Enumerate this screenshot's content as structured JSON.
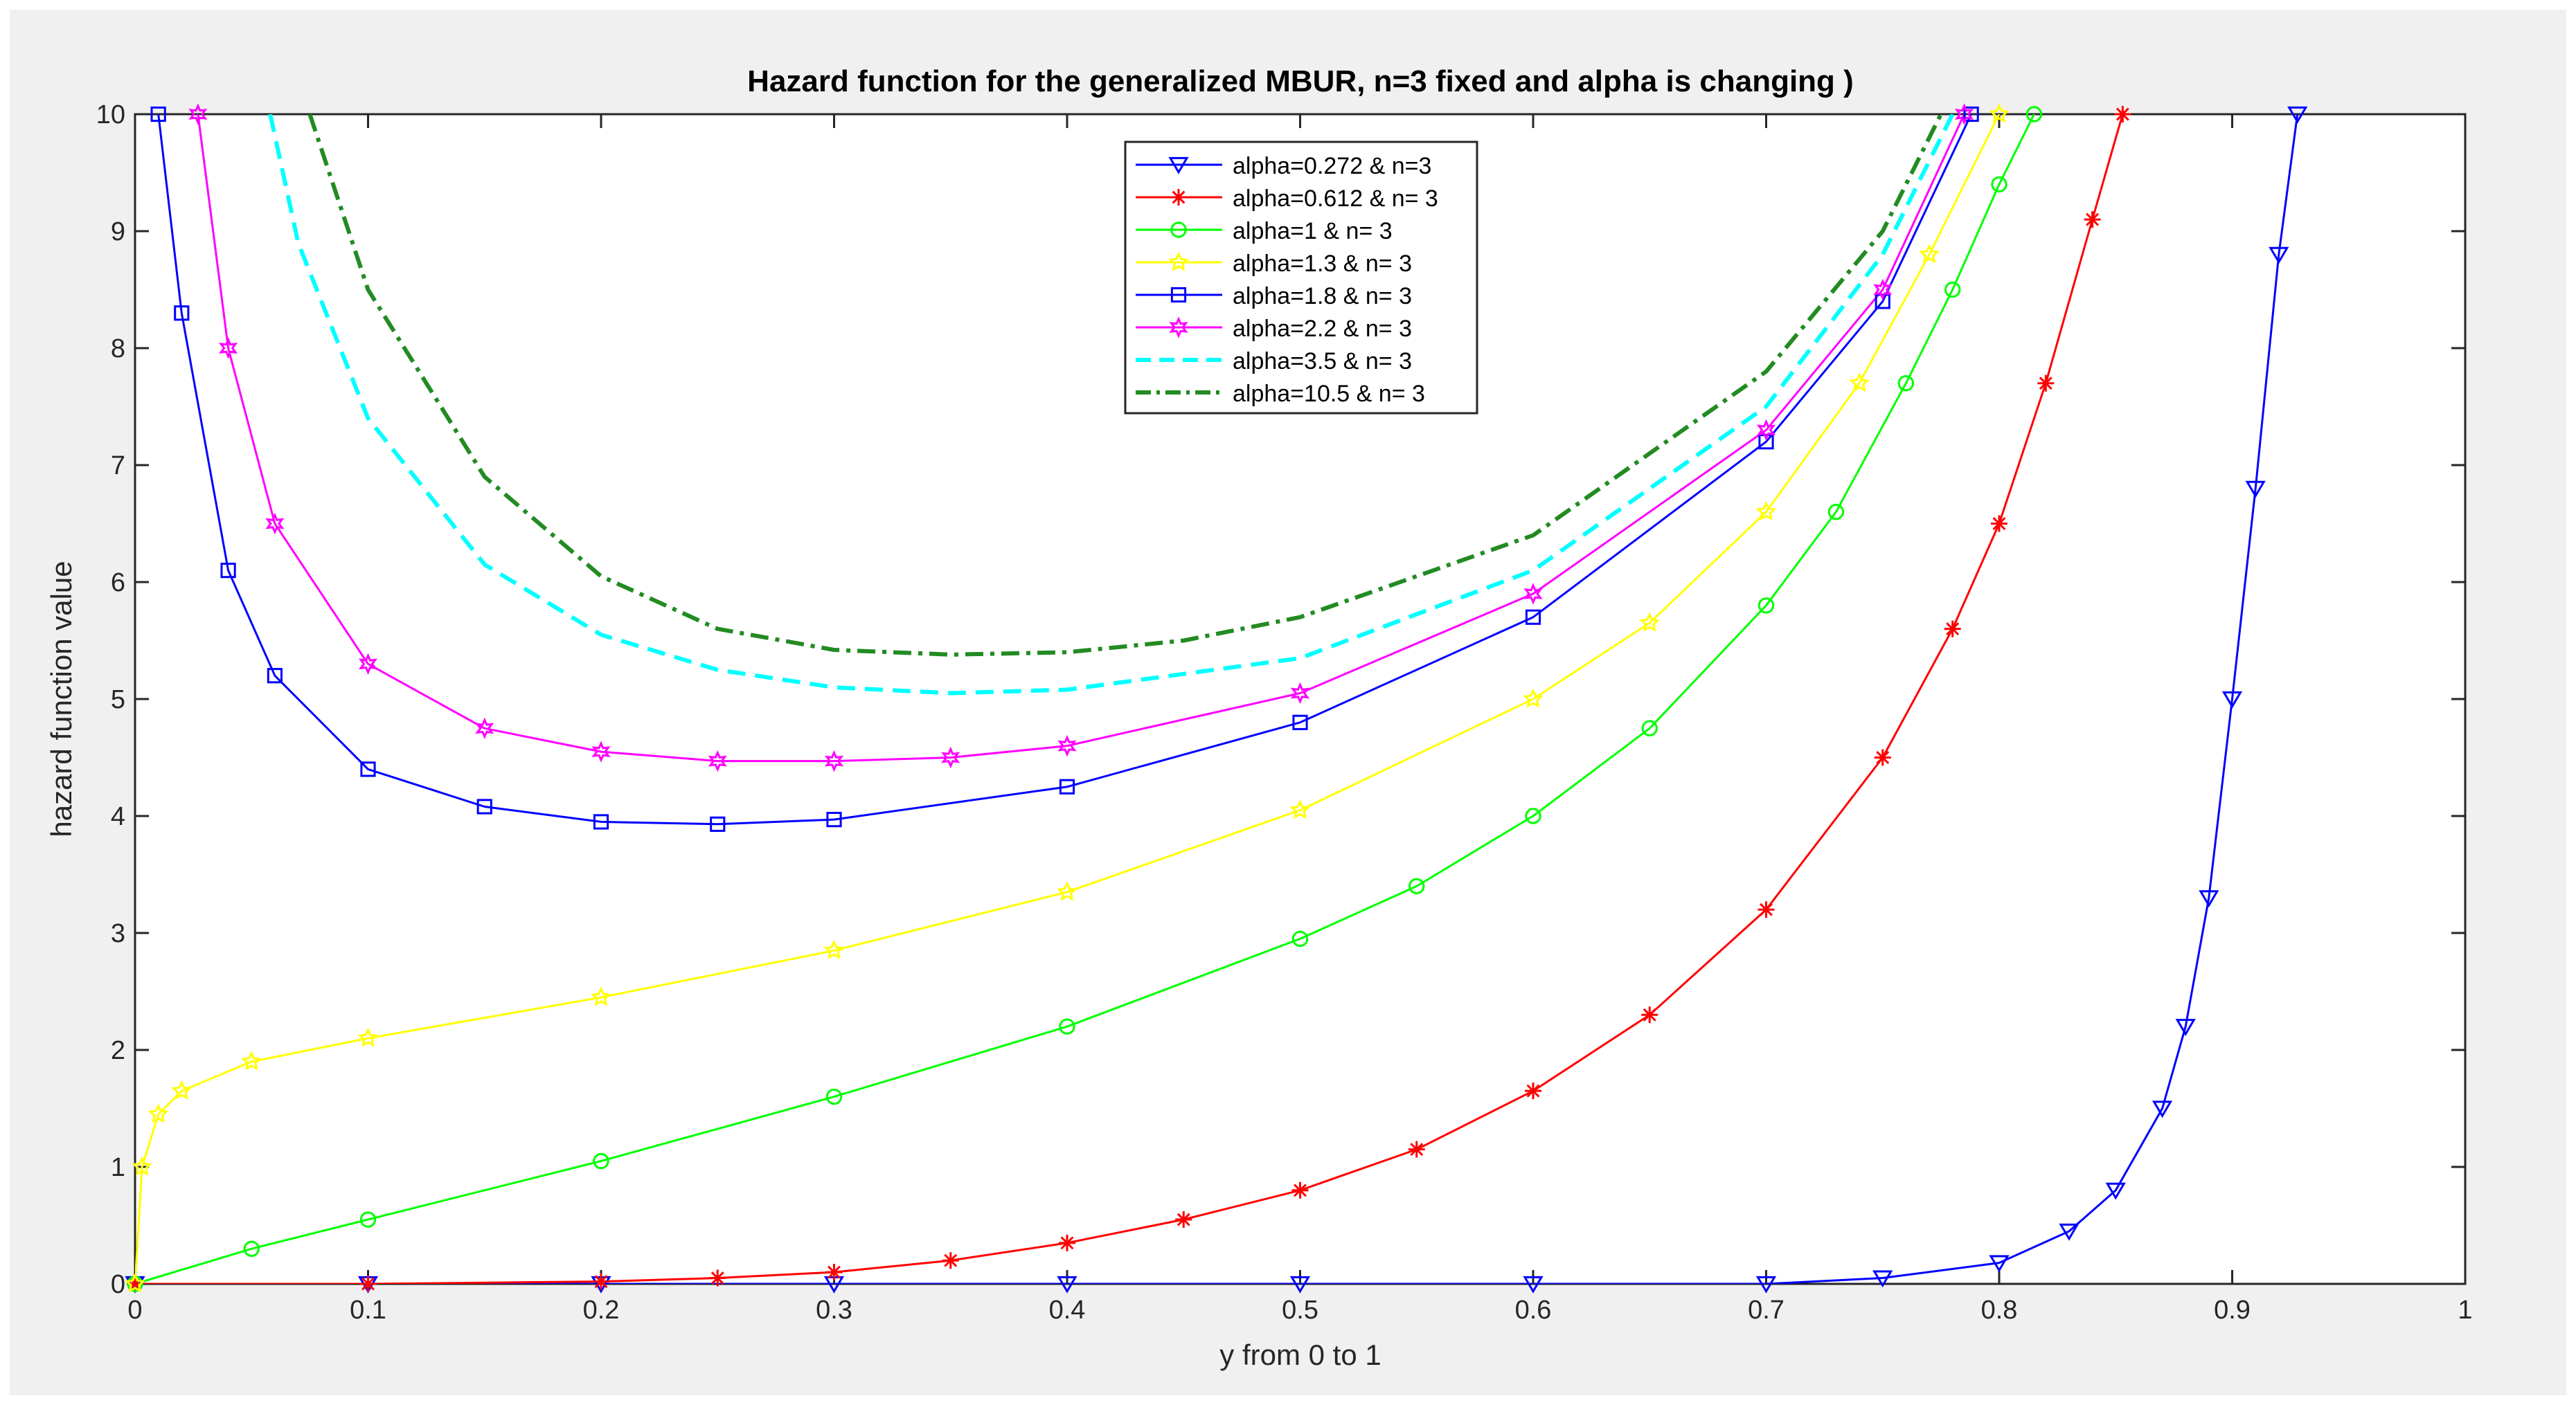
{
  "chart_data": {
    "type": "line",
    "title": "Hazard function for the generalized  MBUR, n=3 fixed and alpha is changing )",
    "xlabel": "y from 0 to 1",
    "ylabel": "hazard function value",
    "xlim": [
      0,
      1
    ],
    "ylim": [
      0,
      10
    ],
    "xticks": [
      0,
      0.1,
      0.2,
      0.3,
      0.4,
      0.5,
      0.6,
      0.7,
      0.8,
      0.9,
      1
    ],
    "yticks": [
      0,
      1,
      2,
      3,
      4,
      5,
      6,
      7,
      8,
      9,
      10
    ],
    "xtick_labels": [
      "0",
      "0.1",
      "0.2",
      "0.3",
      "0.4",
      "0.5",
      "0.6",
      "0.7",
      "0.8",
      "0.9",
      "1"
    ],
    "ytick_labels": [
      "0",
      "1",
      "2",
      "3",
      "4",
      "5",
      "6",
      "7",
      "8",
      "9",
      "10"
    ],
    "grid": false,
    "legend_position": "top-center",
    "series": [
      {
        "name": "alpha=0.272 & n=3",
        "color": "#0000ff",
        "marker": "triangle-down",
        "line_style": "solid",
        "x": [
          0,
          0.1,
          0.2,
          0.3,
          0.4,
          0.5,
          0.6,
          0.7,
          0.75,
          0.8,
          0.83,
          0.85,
          0.87,
          0.88,
          0.89,
          0.9,
          0.91,
          0.92,
          0.928
        ],
        "y": [
          0,
          0,
          0,
          0,
          0,
          0,
          0,
          0,
          0.05,
          0.18,
          0.45,
          0.8,
          1.5,
          2.2,
          3.3,
          5.0,
          6.8,
          8.8,
          10.0
        ]
      },
      {
        "name": "alpha=0.612 & n= 3",
        "color": "#ff0000",
        "marker": "asterisk",
        "line_style": "solid",
        "x": [
          0,
          0.1,
          0.2,
          0.25,
          0.3,
          0.35,
          0.4,
          0.45,
          0.5,
          0.55,
          0.6,
          0.65,
          0.7,
          0.75,
          0.78,
          0.8,
          0.82,
          0.84,
          0.853
        ],
        "y": [
          0,
          0,
          0.02,
          0.05,
          0.1,
          0.2,
          0.35,
          0.55,
          0.8,
          1.15,
          1.65,
          2.3,
          3.2,
          4.5,
          5.6,
          6.5,
          7.7,
          9.1,
          10.0
        ]
      },
      {
        "name": "alpha=1 & n= 3",
        "color": "#00ff00",
        "marker": "circle",
        "line_style": "solid",
        "x": [
          0,
          0.05,
          0.1,
          0.2,
          0.3,
          0.4,
          0.5,
          0.55,
          0.6,
          0.65,
          0.7,
          0.73,
          0.76,
          0.78,
          0.8,
          0.815
        ],
        "y": [
          0,
          0.3,
          0.55,
          1.05,
          1.6,
          2.2,
          2.95,
          3.4,
          4.0,
          4.75,
          5.8,
          6.6,
          7.7,
          8.5,
          9.4,
          10.0
        ]
      },
      {
        "name": "alpha=1.3 & n= 3",
        "color": "#ffff00",
        "marker": "star",
        "line_style": "solid",
        "x": [
          0,
          0.003,
          0.01,
          0.02,
          0.05,
          0.1,
          0.2,
          0.3,
          0.4,
          0.5,
          0.6,
          0.65,
          0.7,
          0.74,
          0.77,
          0.8
        ],
        "y": [
          0,
          1.0,
          1.45,
          1.65,
          1.9,
          2.1,
          2.45,
          2.85,
          3.35,
          4.05,
          5.0,
          5.65,
          6.6,
          7.7,
          8.8,
          10.0
        ]
      },
      {
        "name": "alpha=1.8 & n= 3",
        "color": "#0000ff",
        "marker": "square",
        "line_style": "solid",
        "x": [
          0.01,
          0.02,
          0.04,
          0.06,
          0.1,
          0.15,
          0.2,
          0.25,
          0.3,
          0.4,
          0.5,
          0.6,
          0.7,
          0.75,
          0.788
        ],
        "y": [
          10.0,
          8.3,
          6.1,
          5.2,
          4.4,
          4.08,
          3.95,
          3.93,
          3.97,
          4.25,
          4.8,
          5.7,
          7.2,
          8.4,
          10.0
        ]
      },
      {
        "name": "alpha=2.2 & n= 3",
        "color": "#ff00ff",
        "marker": "hexagram",
        "line_style": "solid",
        "x": [
          0.027,
          0.04,
          0.06,
          0.1,
          0.15,
          0.2,
          0.25,
          0.3,
          0.35,
          0.4,
          0.5,
          0.6,
          0.7,
          0.75,
          0.785
        ],
        "y": [
          10.0,
          8.0,
          6.5,
          5.3,
          4.75,
          4.55,
          4.47,
          4.47,
          4.5,
          4.6,
          5.05,
          5.9,
          7.3,
          8.5,
          10.0
        ]
      },
      {
        "name": "alpha=3.5 & n= 3",
        "color": "#00ffff",
        "marker": "none",
        "line_style": "dashed",
        "x": [
          0.058,
          0.07,
          0.1,
          0.15,
          0.2,
          0.25,
          0.3,
          0.35,
          0.4,
          0.5,
          0.6,
          0.7,
          0.75,
          0.78
        ],
        "y": [
          10.0,
          8.9,
          7.4,
          6.15,
          5.55,
          5.25,
          5.1,
          5.05,
          5.08,
          5.35,
          6.1,
          7.5,
          8.8,
          10.0
        ]
      },
      {
        "name": "alpha=10.5 & n= 3",
        "color": "#228b22",
        "marker": "none",
        "line_style": "dash-dot",
        "x": [
          0.075,
          0.1,
          0.15,
          0.2,
          0.25,
          0.3,
          0.35,
          0.4,
          0.45,
          0.5,
          0.6,
          0.7,
          0.75,
          0.775
        ],
        "y": [
          10.0,
          8.5,
          6.9,
          6.05,
          5.6,
          5.42,
          5.38,
          5.4,
          5.5,
          5.7,
          6.4,
          7.8,
          9.0,
          10.0
        ]
      }
    ]
  }
}
